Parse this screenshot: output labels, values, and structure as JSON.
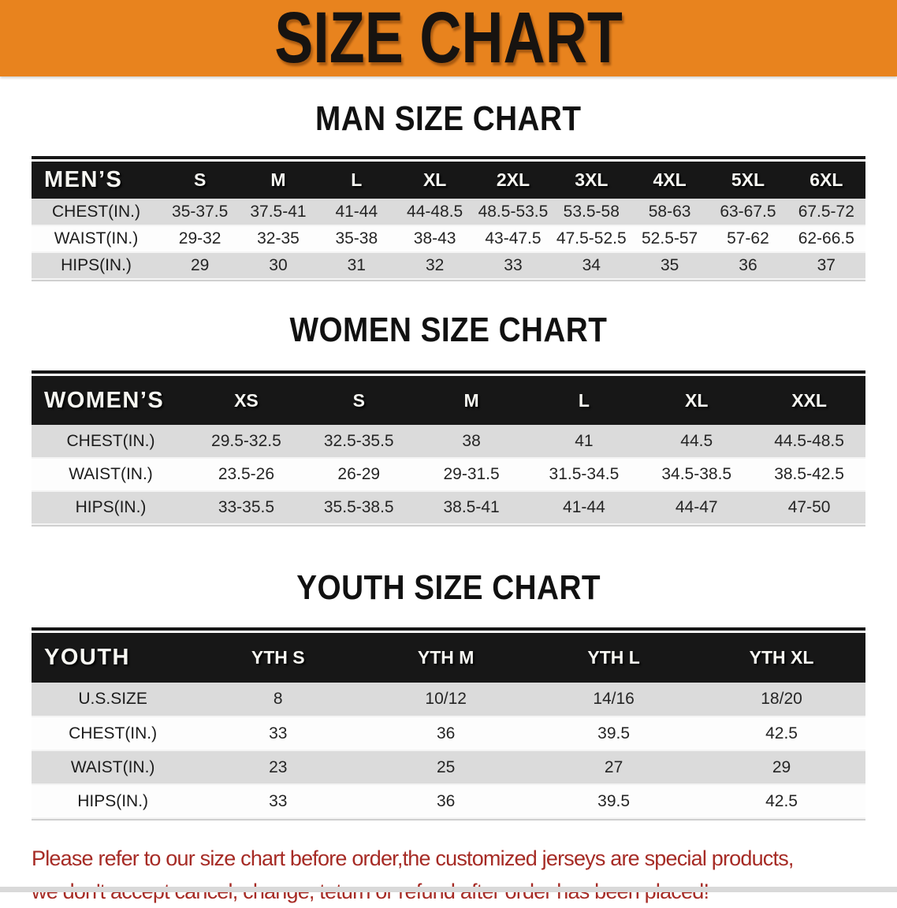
{
  "banner": {
    "title": "SIZE CHART"
  },
  "sections": [
    {
      "id": "men",
      "heading": "MAN SIZE CHART",
      "table": {
        "header": [
          "MEN’S",
          "S",
          "M",
          "L",
          "XL",
          "2XL",
          "3XL",
          "4XL",
          "5XL",
          "6XL"
        ],
        "rows": [
          [
            "CHEST(IN.)",
            "35-37.5",
            "37.5-41",
            "41-44",
            "44-48.5",
            "48.5-53.5",
            "53.5-58",
            "58-63",
            "63-67.5",
            "67.5-72"
          ],
          [
            "WAIST(IN.)",
            "29-32",
            "32-35",
            "35-38",
            "38-43",
            "43-47.5",
            "47.5-52.5",
            "52.5-57",
            "57-62",
            "62-66.5"
          ],
          [
            "HIPS(IN.)",
            "29",
            "30",
            "31",
            "32",
            "33",
            "34",
            "35",
            "36",
            "37"
          ]
        ]
      }
    },
    {
      "id": "women",
      "heading": "WOMEN SIZE CHART",
      "table": {
        "header": [
          "WOMEN’S",
          "XS",
          "S",
          "M",
          "L",
          "XL",
          "XXL"
        ],
        "rows": [
          [
            "CHEST(IN.)",
            "29.5-32.5",
            "32.5-35.5",
            "38",
            "41",
            "44.5",
            "44.5-48.5"
          ],
          [
            "WAIST(IN.)",
            "23.5-26",
            "26-29",
            "29-31.5",
            "31.5-34.5",
            "34.5-38.5",
            "38.5-42.5"
          ],
          [
            "HIPS(IN.)",
            "33-35.5",
            "35.5-38.5",
            "38.5-41",
            "41-44",
            "44-47",
            "47-50"
          ]
        ]
      }
    },
    {
      "id": "youth",
      "heading": "YOUTH SIZE CHART",
      "table": {
        "header": [
          "YOUTH",
          "YTH S",
          "YTH M",
          "YTH L",
          "YTH XL"
        ],
        "rows": [
          [
            "U.S.SIZE",
            "8",
            "10/12",
            "14/16",
            "18/20"
          ],
          [
            "CHEST(IN.)",
            "33",
            "36",
            "39.5",
            "42.5"
          ],
          [
            "WAIST(IN.)",
            "23",
            "25",
            "27",
            "29"
          ],
          [
            "HIPS(IN.)",
            "33",
            "36",
            "39.5",
            "42.5"
          ]
        ]
      }
    }
  ],
  "note": {
    "line1": "Please refer to our size chart before order,the customized jerseys are special products,",
    "line2": "we don't accept cancel, change, teturn or refund after order has been placed!"
  },
  "colors": {
    "banner_bg": "#e8831e",
    "header_bg": "#171717",
    "row_gray": "#dbdbdb",
    "note_color": "#a62b25"
  }
}
